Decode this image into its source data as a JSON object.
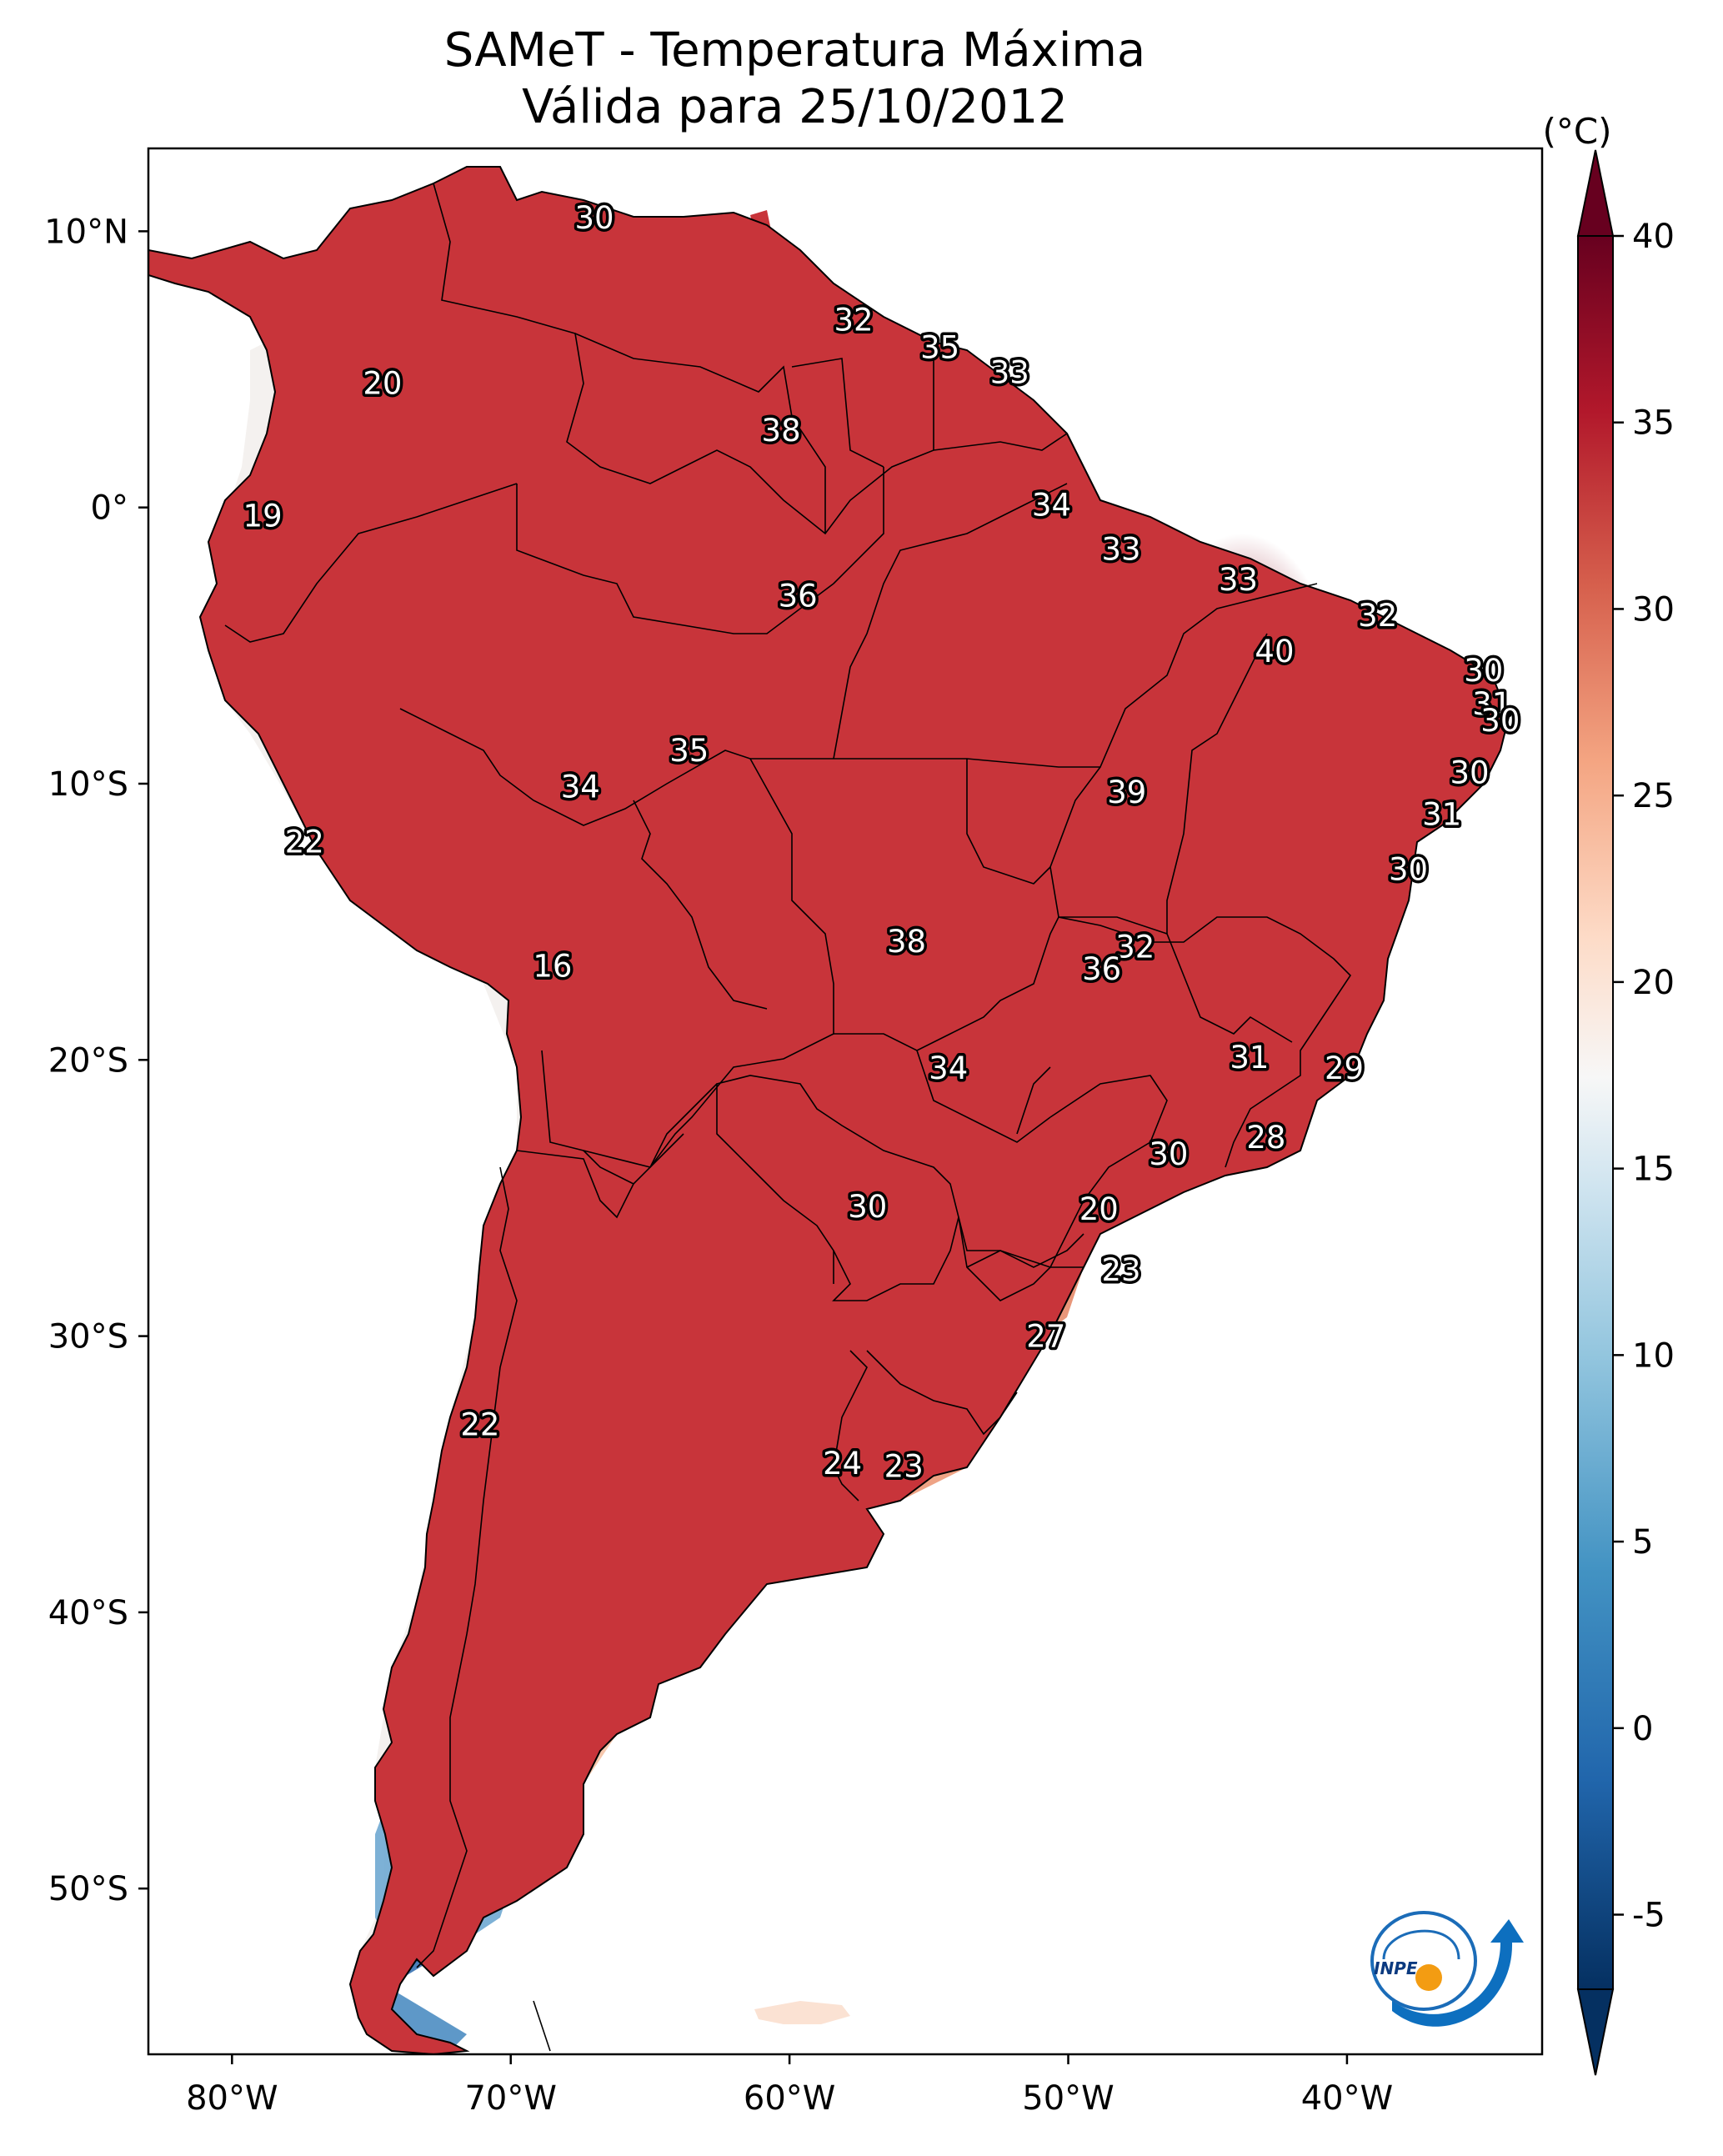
{
  "title": {
    "line1": "SAMeT - Temperatura Máxima",
    "line2": "Válida para 25/10/2012"
  },
  "colorbar": {
    "unit": "(°C)",
    "ticks": [
      "40",
      "35",
      "30",
      "25",
      "20",
      "15",
      "10",
      "5",
      "0",
      "-5"
    ],
    "values": [
      40,
      35,
      30,
      25,
      20,
      15,
      10,
      5,
      0,
      -5
    ],
    "colors": [
      "#67001f",
      "#b2182b",
      "#d6604d",
      "#f4a582",
      "#fddbc7",
      "#f7f7f7",
      "#d1e5f0",
      "#92c5de",
      "#4393c3",
      "#2166ac",
      "#053061"
    ]
  },
  "axes": {
    "lon_ticks": [
      "80°W",
      "70°W",
      "60°W",
      "50°W",
      "40°W"
    ],
    "lat_ticks": [
      "10°N",
      "0°",
      "10°S",
      "20°S",
      "30°S",
      "40°S",
      "50°S"
    ],
    "lon_range": [
      -83,
      -33
    ],
    "lat_range": [
      -56,
      13
    ]
  },
  "labels": [
    {
      "text": "30",
      "lon": -67,
      "lat": 10.5
    },
    {
      "text": "32",
      "lon": -57.7,
      "lat": 6.8
    },
    {
      "text": "35",
      "lon": -54.6,
      "lat": 5.8
    },
    {
      "text": "33",
      "lon": -52.1,
      "lat": 4.9
    },
    {
      "text": "20",
      "lon": -74.6,
      "lat": 4.5
    },
    {
      "text": "38",
      "lon": -60.3,
      "lat": 2.8
    },
    {
      "text": "34",
      "lon": -50.6,
      "lat": 0.1
    },
    {
      "text": "19",
      "lon": -78.9,
      "lat": -0.3
    },
    {
      "text": "33",
      "lon": -48.1,
      "lat": -1.5
    },
    {
      "text": "33",
      "lon": -43.9,
      "lat": -2.6
    },
    {
      "text": "36",
      "lon": -59.7,
      "lat": -3.2
    },
    {
      "text": "32",
      "lon": -38.9,
      "lat": -3.9
    },
    {
      "text": "40",
      "lon": -42.6,
      "lat": -5.2
    },
    {
      "text": "30",
      "lon": -35.1,
      "lat": -5.9
    },
    {
      "text": "31",
      "lon": -34.8,
      "lat": -7.1
    },
    {
      "text": "30",
      "lon": -34.5,
      "lat": -7.7
    },
    {
      "text": "35",
      "lon": -63.6,
      "lat": -8.8
    },
    {
      "text": "30",
      "lon": -35.6,
      "lat": -9.6
    },
    {
      "text": "34",
      "lon": -67.5,
      "lat": -10.1
    },
    {
      "text": "39",
      "lon": -47.9,
      "lat": -10.3
    },
    {
      "text": "31",
      "lon": -36.6,
      "lat": -11.1
    },
    {
      "text": "22",
      "lon": -77.4,
      "lat": -12.1
    },
    {
      "text": "30",
      "lon": -37.8,
      "lat": -13.1
    },
    {
      "text": "38",
      "lon": -55.8,
      "lat": -15.7
    },
    {
      "text": "32",
      "lon": -47.6,
      "lat": -15.9
    },
    {
      "text": "16",
      "lon": -68.5,
      "lat": -16.6
    },
    {
      "text": "36",
      "lon": -48.8,
      "lat": -16.7
    },
    {
      "text": "31",
      "lon": -43.5,
      "lat": -19.9
    },
    {
      "text": "34",
      "lon": -54.3,
      "lat": -20.3
    },
    {
      "text": "29",
      "lon": -40.1,
      "lat": -20.3
    },
    {
      "text": "28",
      "lon": -42.9,
      "lat": -22.8
    },
    {
      "text": "30",
      "lon": -46.4,
      "lat": -23.4
    },
    {
      "text": "30",
      "lon": -57.2,
      "lat": -25.3
    },
    {
      "text": "20",
      "lon": -48.9,
      "lat": -25.4
    },
    {
      "text": "23",
      "lon": -48.1,
      "lat": -27.6
    },
    {
      "text": "27",
      "lon": -50.8,
      "lat": -30.0
    },
    {
      "text": "22",
      "lon": -71.1,
      "lat": -33.2
    },
    {
      "text": "24",
      "lon": -58.1,
      "lat": -34.6
    },
    {
      "text": "23",
      "lon": -55.9,
      "lat": -34.7
    }
  ],
  "logo": {
    "text": "INPE"
  }
}
